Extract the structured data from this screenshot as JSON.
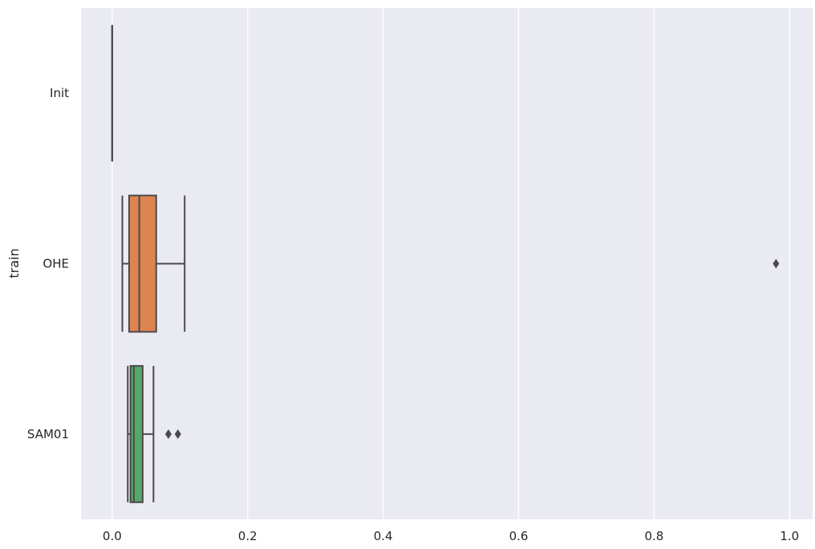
{
  "chart_data": {
    "type": "boxplot",
    "orientation": "horizontal",
    "title": "",
    "xlabel": "",
    "ylabel": "train",
    "xlim": [
      -0.046,
      1.034
    ],
    "xticks": [
      0.0,
      0.2,
      0.4,
      0.6,
      0.8,
      1.0
    ],
    "xtick_labels": [
      "0.0",
      "0.2",
      "0.4",
      "0.6",
      "0.8",
      "1.0"
    ],
    "grid": true,
    "background": "#eaeaf2",
    "grid_color": "#ffffff",
    "line_color": "#4a4a4a",
    "categories": [
      "Init",
      "OHE",
      "SAM01"
    ],
    "boxes": [
      {
        "label": "Init",
        "color": "#4c72b0",
        "whisker_low": 0.0,
        "q1": 0.0,
        "median": 0.0,
        "q3": 0.0,
        "whisker_high": 0.0,
        "outliers": []
      },
      {
        "label": "OHE",
        "color": "#dd8452",
        "whisker_low": 0.015,
        "q1": 0.025,
        "median": 0.04,
        "q3": 0.065,
        "whisker_high": 0.107,
        "outliers": [
          0.98
        ]
      },
      {
        "label": "SAM01",
        "color": "#55a868",
        "whisker_low": 0.023,
        "q1": 0.027,
        "median": 0.032,
        "q3": 0.045,
        "whisker_high": 0.061,
        "outliers": [
          0.083,
          0.097
        ]
      }
    ]
  }
}
